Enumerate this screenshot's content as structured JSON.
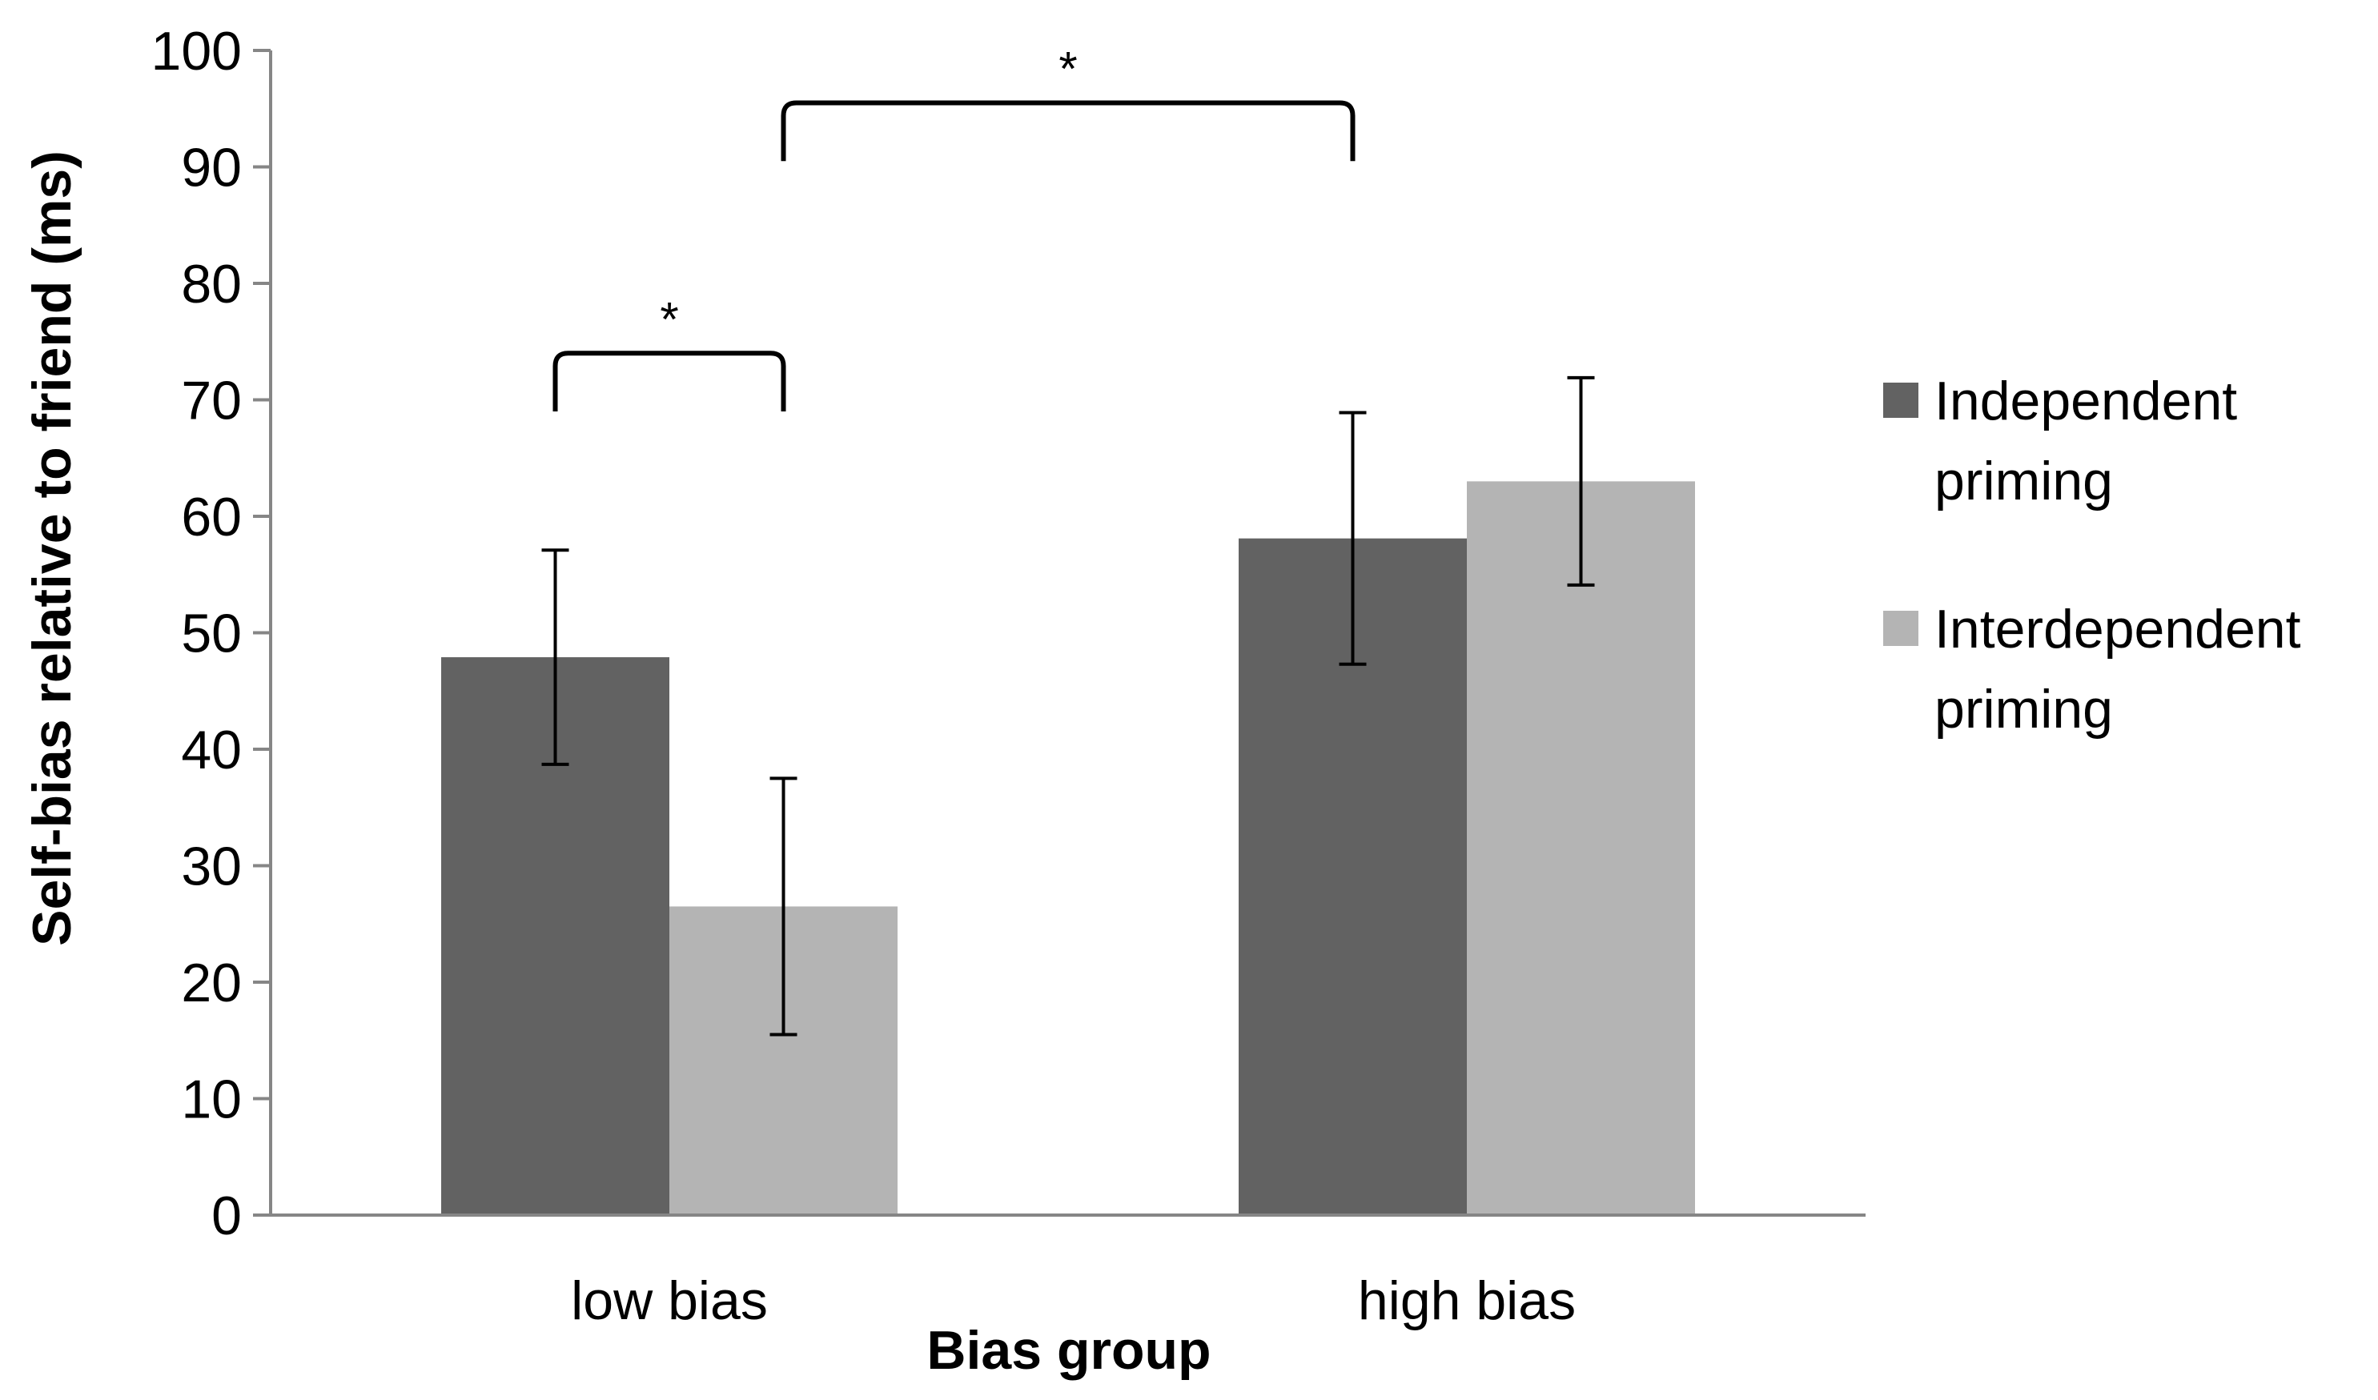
{
  "chart_data": {
    "type": "bar",
    "title": "",
    "xlabel": "Bias group",
    "ylabel": "Self-bias relative to friend (ms)",
    "ylim": [
      0,
      100
    ],
    "yticks": [
      0,
      10,
      20,
      30,
      40,
      50,
      60,
      70,
      80,
      90,
      100
    ],
    "grid": false,
    "legend_position": "right",
    "categories": [
      "low bias",
      "high bias"
    ],
    "series": [
      {
        "name": "Independent priming",
        "legend_lines": [
          "Independent",
          "priming"
        ],
        "color": "#626262",
        "values": [
          47.9,
          58.1
        ],
        "error_low": [
          38.7,
          47.3
        ],
        "error_high": [
          57.1,
          68.9
        ]
      },
      {
        "name": "Interdependent priming",
        "legend_lines": [
          "Interdependent",
          "priming"
        ],
        "color": "#b4b4b4",
        "values": [
          26.5,
          63.0
        ],
        "error_low": [
          15.5,
          54.1
        ],
        "error_high": [
          37.5,
          71.9
        ]
      }
    ],
    "significance": [
      {
        "label": "*",
        "from": {
          "category": 0,
          "series": 0
        },
        "to": {
          "category": 0,
          "series": 1
        },
        "y": 74,
        "drop_to": 69
      },
      {
        "label": "*",
        "from": {
          "category": 0,
          "series": 1
        },
        "to": {
          "category": 1,
          "series": 0
        },
        "y": 95.5,
        "drop_to": 90.5
      }
    ]
  }
}
